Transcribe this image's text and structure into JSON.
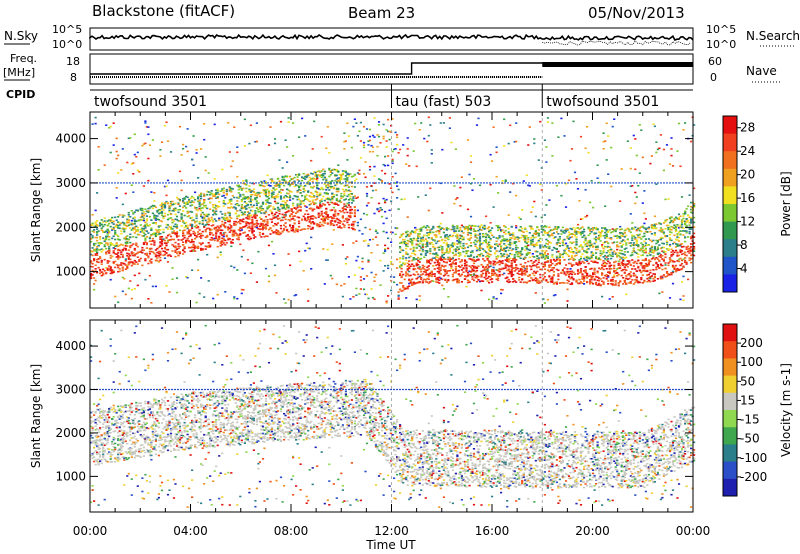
{
  "header": {
    "station": "Blackstone (fitACF)",
    "beam": "Beam 23",
    "date": "05/Nov/2013"
  },
  "left_labels": {
    "nsky": "N.Sky",
    "nsky_hi": "10^5",
    "nsky_lo": "10^0",
    "freq": "Freq.",
    "freq_unit": "[MHz]",
    "freq_hi": "18",
    "freq_lo": "8",
    "cpid": "CPID"
  },
  "right_labels": {
    "nsearch": "N.Search",
    "nsearch_hi": "10^5",
    "nsearch_lo": "10^0",
    "nave": "Nave",
    "nave_hi": "60",
    "nave_lo": "0"
  },
  "cpid_segments": [
    {
      "label": "twofsound 3501",
      "start": 0.0,
      "end": 12.0
    },
    {
      "label": "tau (fast) 503",
      "start": 12.0,
      "end": 18.0
    },
    {
      "label": "twofsound 3501",
      "start": 18.0,
      "end": 24.0
    }
  ],
  "colors": {
    "power": [
      "#1a22e6",
      "#1f55c8",
      "#2a7f8a",
      "#2f9a4f",
      "#7cc830",
      "#f0e020",
      "#f0a020",
      "#f07020",
      "#f04020",
      "#e60f0f"
    ],
    "velocity": [
      "#2020b0",
      "#2a4fc8",
      "#2a7f8a",
      "#3fa84f",
      "#8fd850",
      "#c8c8c0",
      "#f0d030",
      "#f09020",
      "#f05018",
      "#e01010"
    ]
  },
  "chart_data": [
    {
      "type": "heatmap",
      "title": "Power",
      "xlabel": "Time UT",
      "ylabel": "Slant Range [km]",
      "xlim": [
        0,
        24
      ],
      "ylim": [
        180,
        4600
      ],
      "x_ticks": [
        "00:00",
        "04:00",
        "08:00",
        "12:00",
        "16:00",
        "20:00",
        "00:00"
      ],
      "y_ticks": [
        1000,
        2000,
        3000,
        4000
      ],
      "colorbar": {
        "label": "Power [dB]",
        "ticks": [
          4,
          8,
          12,
          16,
          20,
          24,
          28
        ],
        "range": [
          0,
          30
        ]
      },
      "features": [
        {
          "name": "main band",
          "t": [
            0,
            2,
            4,
            6,
            8,
            9.5,
            10.5
          ],
          "range": [
            1100,
            1400,
            1700,
            1950,
            2150,
            2300,
            2200
          ],
          "level": 22
        },
        {
          "name": "post-12 band",
          "t": [
            12.3,
            13,
            16,
            18,
            21,
            22.5,
            23.5,
            24
          ],
          "range": [
            800,
            1000,
            1020,
            1000,
            950,
            1050,
            1300,
            1600
          ],
          "level": 28
        }
      ]
    },
    {
      "type": "heatmap",
      "title": "Velocity",
      "xlabel": "Time UT",
      "ylabel": "Slant Range [km]",
      "xlim": [
        0,
        24
      ],
      "ylim": [
        180,
        4600
      ],
      "x_ticks": [
        "00:00",
        "04:00",
        "08:00",
        "12:00",
        "16:00",
        "20:00",
        "00:00"
      ],
      "y_ticks": [
        1000,
        2000,
        3000,
        4000
      ],
      "colorbar": {
        "label": "Velocity [m s-1]",
        "ticks": [
          200,
          100,
          50,
          15,
          -15,
          -50,
          -100,
          -200
        ]
      },
      "features": [
        {
          "name": "ground scatter band",
          "t": [
            0,
            4,
            8,
            11,
            12.5,
            18,
            22,
            24
          ],
          "range": [
            1500,
            1900,
            2100,
            2200,
            1050,
            1000,
            1000,
            1600
          ],
          "level": 0
        }
      ]
    }
  ]
}
